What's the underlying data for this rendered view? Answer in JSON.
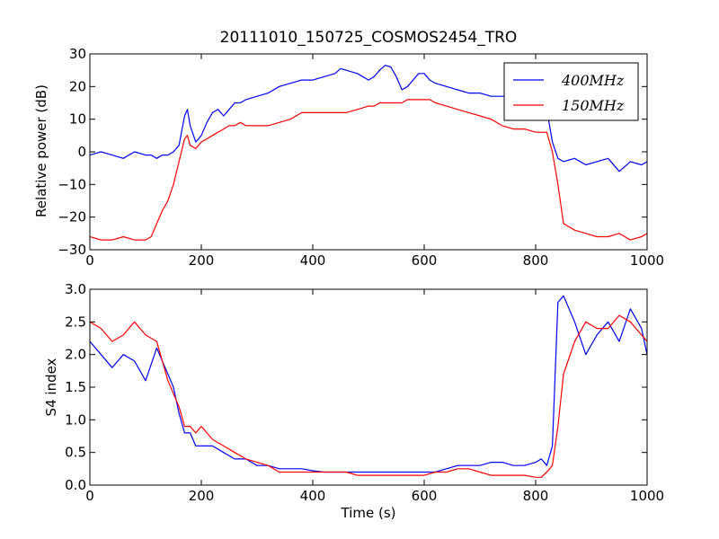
{
  "figure": {
    "title": "20111010_150725_COSMOS2454_TRO",
    "background": "#ffffff"
  },
  "chart_data": [
    {
      "id": "power",
      "type": "line",
      "title": "20111010_150725_COSMOS2454_TRO",
      "xlabel": "",
      "ylabel": "Relative power (dB)",
      "xlim": [
        0,
        1000
      ],
      "ylim": [
        -30,
        30
      ],
      "xticks": [
        0,
        200,
        400,
        600,
        800,
        1000
      ],
      "yticks": [
        -30,
        -20,
        -10,
        0,
        10,
        20,
        30
      ],
      "grid": false,
      "legend": {
        "position": "top-right",
        "entries": [
          "400MHz",
          "150MHz"
        ]
      },
      "x": [
        0,
        20,
        40,
        60,
        80,
        100,
        110,
        120,
        130,
        140,
        150,
        160,
        170,
        175,
        180,
        190,
        200,
        210,
        220,
        230,
        240,
        250,
        260,
        270,
        280,
        300,
        320,
        340,
        360,
        380,
        400,
        420,
        440,
        450,
        460,
        480,
        500,
        510,
        520,
        530,
        540,
        550,
        560,
        570,
        580,
        590,
        600,
        610,
        620,
        640,
        660,
        680,
        700,
        720,
        740,
        760,
        780,
        800,
        810,
        820,
        830,
        840,
        850,
        870,
        890,
        910,
        930,
        950,
        970,
        990,
        1000
      ],
      "series": [
        {
          "name": "400MHz",
          "color": "#0000ff",
          "values": [
            -1,
            0,
            -1,
            -2,
            0,
            -1,
            -1,
            -2,
            -1,
            -1,
            0,
            2,
            11,
            13,
            8,
            3,
            5,
            9,
            12,
            13,
            11,
            13,
            15,
            15,
            16,
            17,
            18,
            20,
            21,
            22,
            22,
            23,
            24,
            25.5,
            25,
            24,
            22,
            23,
            25,
            26.5,
            26,
            23,
            19,
            20,
            22,
            24,
            24,
            22,
            21,
            20,
            19,
            18,
            18,
            17,
            17,
            17,
            17,
            16,
            15,
            13,
            3,
            -2,
            -3,
            -2,
            -4,
            -3,
            -2,
            -6,
            -3,
            -4,
            -3
          ]
        },
        {
          "name": "150MHz",
          "color": "#ff0000",
          "values": [
            -26,
            -27,
            -27,
            -26,
            -27,
            -27,
            -26,
            -22,
            -18,
            -15,
            -10,
            -3,
            4,
            5,
            2,
            1,
            3,
            4,
            5,
            6,
            7,
            8,
            8,
            9,
            8,
            8,
            8,
            9,
            10,
            12,
            12,
            12,
            12,
            12,
            12,
            13,
            14,
            14,
            15,
            15,
            15,
            15,
            15,
            16,
            16,
            16,
            16,
            16,
            15,
            14,
            13,
            12,
            11,
            10,
            8,
            7,
            7,
            6,
            6,
            6,
            0,
            -10,
            -22,
            -24,
            -25,
            -26,
            -26,
            -25,
            -27,
            -26,
            -25
          ]
        }
      ]
    },
    {
      "id": "s4",
      "type": "line",
      "title": "",
      "xlabel": "Time (s)",
      "ylabel": "S4 index",
      "xlim": [
        0,
        1000
      ],
      "ylim": [
        0.0,
        3.0
      ],
      "xticks": [
        0,
        200,
        400,
        600,
        800,
        1000
      ],
      "yticks": [
        0.0,
        0.5,
        1.0,
        1.5,
        2.0,
        2.5,
        3.0
      ],
      "grid": false,
      "x": [
        0,
        20,
        40,
        60,
        80,
        100,
        120,
        140,
        150,
        160,
        170,
        180,
        190,
        200,
        220,
        240,
        260,
        280,
        300,
        320,
        340,
        360,
        380,
        400,
        420,
        440,
        460,
        480,
        500,
        520,
        540,
        560,
        580,
        600,
        620,
        640,
        660,
        680,
        700,
        720,
        740,
        760,
        780,
        800,
        810,
        820,
        830,
        840,
        850,
        870,
        890,
        910,
        930,
        950,
        970,
        990,
        1000
      ],
      "series": [
        {
          "name": "400MHz",
          "color": "#0000ff",
          "values": [
            2.2,
            2.0,
            1.8,
            2.0,
            1.9,
            1.6,
            2.1,
            1.7,
            1.5,
            1.1,
            0.8,
            0.8,
            0.6,
            0.6,
            0.6,
            0.5,
            0.4,
            0.4,
            0.3,
            0.3,
            0.25,
            0.25,
            0.25,
            0.22,
            0.2,
            0.2,
            0.2,
            0.2,
            0.2,
            0.2,
            0.2,
            0.2,
            0.2,
            0.2,
            0.2,
            0.25,
            0.3,
            0.3,
            0.3,
            0.35,
            0.35,
            0.3,
            0.3,
            0.35,
            0.4,
            0.3,
            0.6,
            2.8,
            2.9,
            2.5,
            2.0,
            2.3,
            2.5,
            2.2,
            2.7,
            2.4,
            2.0
          ]
        },
        {
          "name": "150MHz",
          "color": "#ff0000",
          "values": [
            2.5,
            2.4,
            2.2,
            2.3,
            2.5,
            2.3,
            2.2,
            1.6,
            1.4,
            1.2,
            0.9,
            0.9,
            0.8,
            0.9,
            0.7,
            0.6,
            0.5,
            0.4,
            0.35,
            0.3,
            0.2,
            0.2,
            0.2,
            0.2,
            0.2,
            0.2,
            0.2,
            0.15,
            0.15,
            0.15,
            0.15,
            0.15,
            0.15,
            0.15,
            0.2,
            0.2,
            0.25,
            0.25,
            0.2,
            0.15,
            0.15,
            0.15,
            0.15,
            0.12,
            0.12,
            0.2,
            0.3,
            0.9,
            1.7,
            2.2,
            2.5,
            2.4,
            2.4,
            2.6,
            2.5,
            2.3,
            2.2
          ]
        }
      ]
    }
  ]
}
